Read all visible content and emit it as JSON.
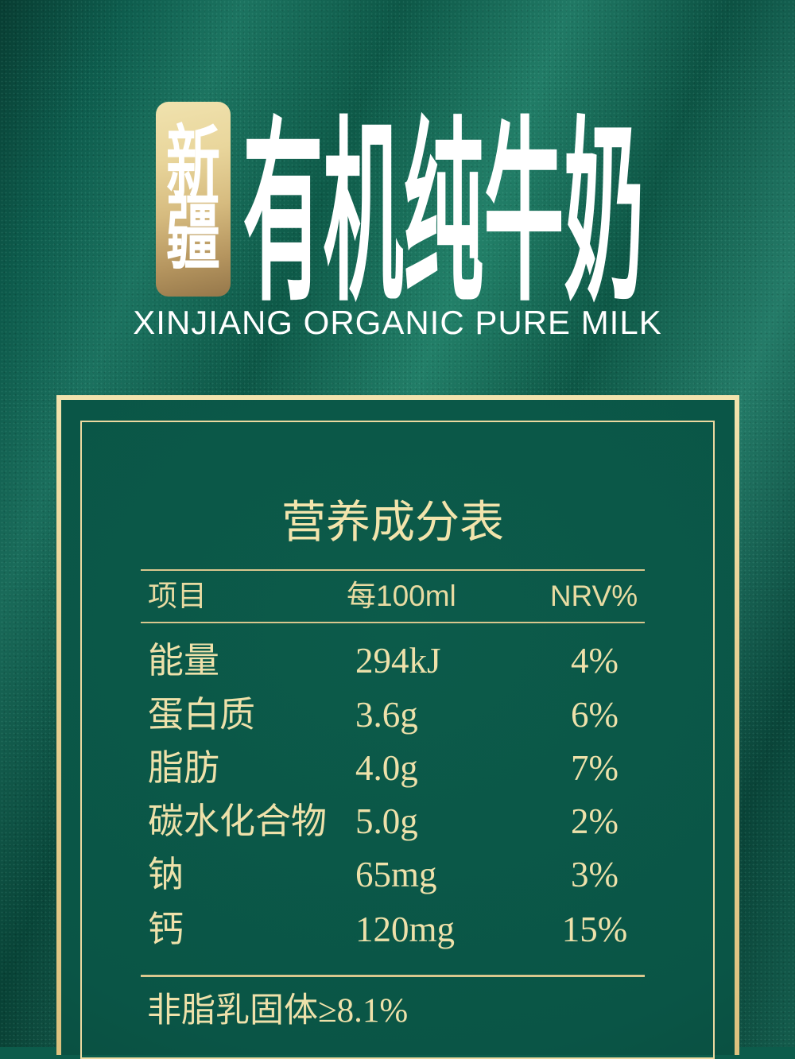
{
  "product": {
    "badge": {
      "char_top": "新",
      "char_bottom": "疆"
    },
    "title": "有机纯牛奶",
    "subtitle": "XINJIANG ORGANIC PURE MILK"
  },
  "nutrition": {
    "title": "营养成分表",
    "header": {
      "item": "项目",
      "per": "每100ml",
      "nrv": "NRV%"
    },
    "rows": [
      {
        "item": "能量",
        "per100ml": "294kJ",
        "nrv": "4%"
      },
      {
        "item": "蛋白质",
        "per100ml": "3.6g",
        "nrv": "6%"
      },
      {
        "item": "脂肪",
        "per100ml": "4.0g",
        "nrv": "7%"
      },
      {
        "item": "碳水化合物",
        "per100ml": "5.0g",
        "nrv": "2%"
      },
      {
        "item": "钠",
        "per100ml": "65mg",
        "nrv": "3%"
      },
      {
        "item": "钙",
        "per100ml": "120mg",
        "nrv": "15%"
      }
    ],
    "footnote": "非脂乳固体≥8.1%"
  },
  "colors": {
    "background_green": "#0e6050",
    "panel_green": "#0a5546",
    "gold_border": "#e9d296",
    "gold_text": "#eee1aa",
    "rule_gold": "#d9c78e",
    "badge_gold_light": "#f0e2ae",
    "badge_gold_dark": "#95774a",
    "title_white": "#ffffff"
  }
}
